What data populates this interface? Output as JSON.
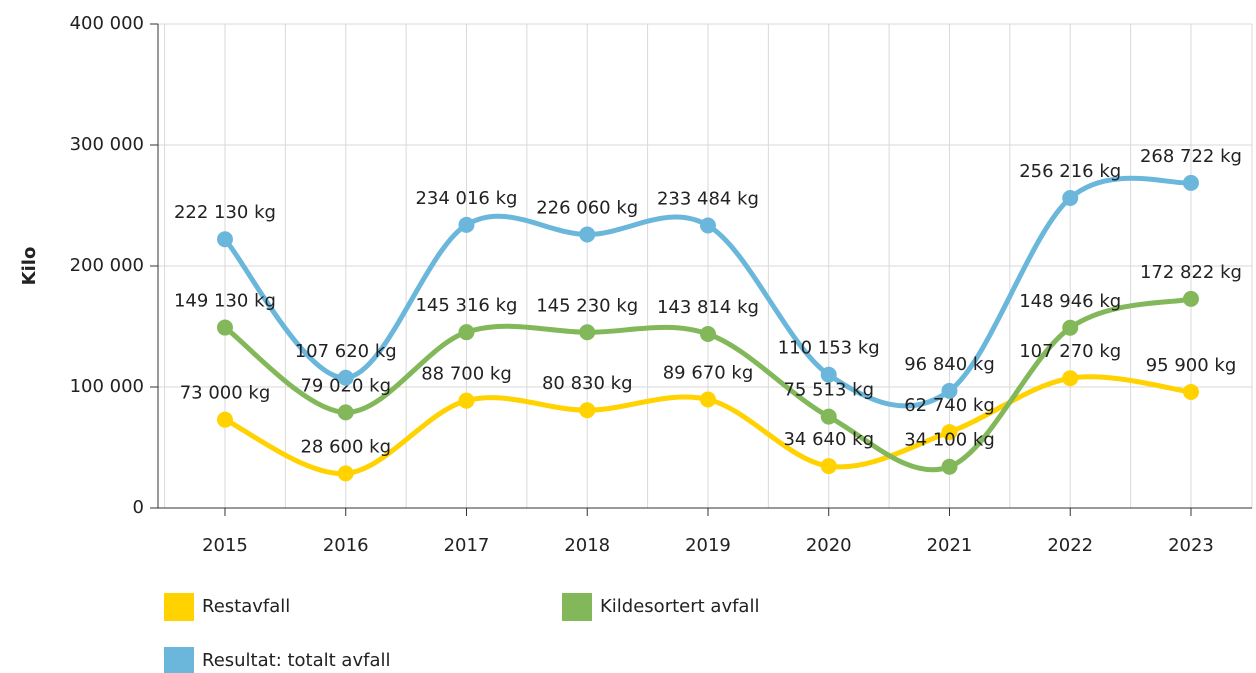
{
  "chart_data": {
    "type": "line",
    "y_label": "Kilo",
    "categories": [
      "2015",
      "2016",
      "2017",
      "2018",
      "2019",
      "2020",
      "2021",
      "2022",
      "2023"
    ],
    "series": [
      {
        "name": "Restavfall",
        "color": "#ffd200",
        "values": [
          73000,
          28600,
          88700,
          80830,
          89670,
          34640,
          62740,
          107270,
          95900
        ],
        "value_labels": [
          "73 000 kg",
          "28 600 kg",
          "88 700 kg",
          "80 830 kg",
          "89 670 kg",
          "34 640 kg",
          "62 740 kg",
          "107 270 kg",
          "95 900 kg"
        ]
      },
      {
        "name": "Kildesortert avfall",
        "color": "#82b85a",
        "values": [
          149130,
          79020,
          145316,
          145230,
          143814,
          75513,
          34100,
          148946,
          172822
        ],
        "value_labels": [
          "149 130 kg",
          "79 020 kg",
          "145 316 kg",
          "145 230 kg",
          "143 814 kg",
          "75 513 kg",
          "34 100 kg",
          "148 946 kg",
          "172 822 kg"
        ]
      },
      {
        "name": "Resultat: totalt avfall",
        "color": "#6bb7dc",
        "values": [
          222130,
          107620,
          234016,
          226060,
          233484,
          110153,
          96840,
          256216,
          268722
        ],
        "value_labels": [
          "222 130 kg",
          "107 620 kg",
          "234 016 kg",
          "226 060 kg",
          "233 484 kg",
          "110 153 kg",
          "96 840 kg",
          "256 216 kg",
          "268 722 kg"
        ]
      }
    ],
    "ylim": [
      0,
      400000
    ],
    "yticks": [
      0,
      {
        "value": 100000,
        "label": "100 000"
      },
      {
        "value": 200000,
        "label": "200 000"
      },
      {
        "value": 300000,
        "label": "300 000"
      },
      {
        "value": 400000,
        "label": "400 000"
      }
    ],
    "grid": true
  }
}
